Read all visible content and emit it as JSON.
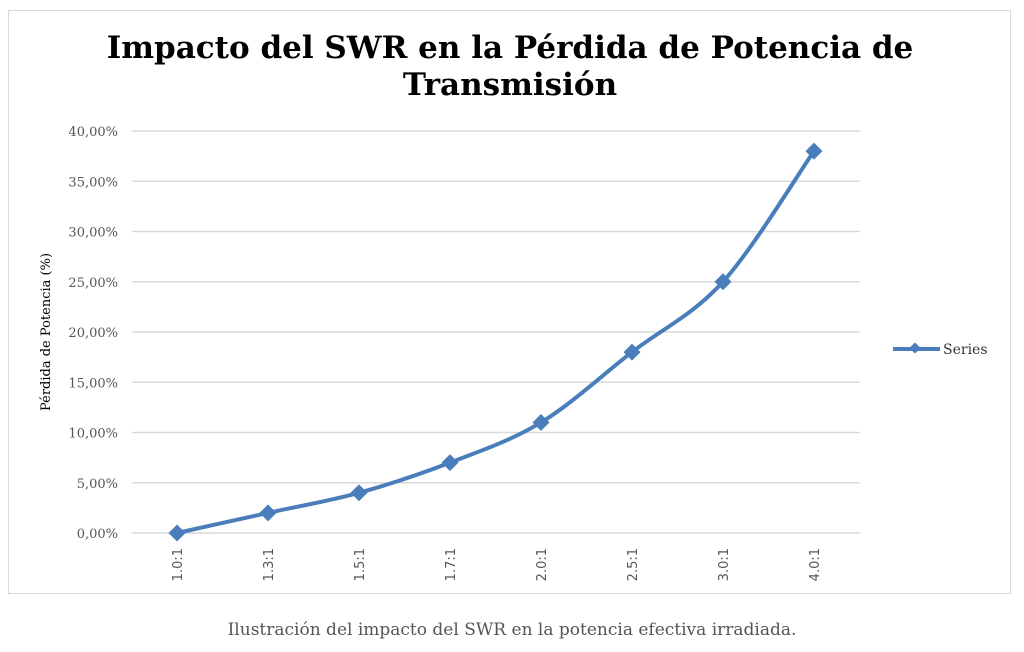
{
  "caption": "Ilustración del impacto del SWR en la potencia efectiva irradiada.",
  "chart_data": {
    "type": "line",
    "title": "Impacto del SWR en la Pérdida de Potencia de Transmisión",
    "title_lines": [
      "Impacto del SWR en la Pérdida de Potencia de",
      "Transmisión"
    ],
    "xlabel": "",
    "ylabel": "Pérdida de Potencia (%)",
    "categories": [
      "1.0:1",
      "1.3:1",
      "1.5:1",
      "1.7:1",
      "2.0:1",
      "2.5:1",
      "3.0:1",
      "4.0:1"
    ],
    "series": [
      {
        "name": "Series",
        "values": [
          0,
          2,
          4,
          7,
          11,
          18,
          25,
          38
        ],
        "color": "#4a7ebb"
      }
    ],
    "ylim": [
      0,
      40
    ],
    "yticks": [
      "0,00%",
      "5,00%",
      "10,00%",
      "15,00%",
      "20,00%",
      "25,00%",
      "30,00%",
      "35,00%",
      "40,00%"
    ],
    "grid": true,
    "smooth": true,
    "marker": "diamond",
    "legend": "right"
  }
}
